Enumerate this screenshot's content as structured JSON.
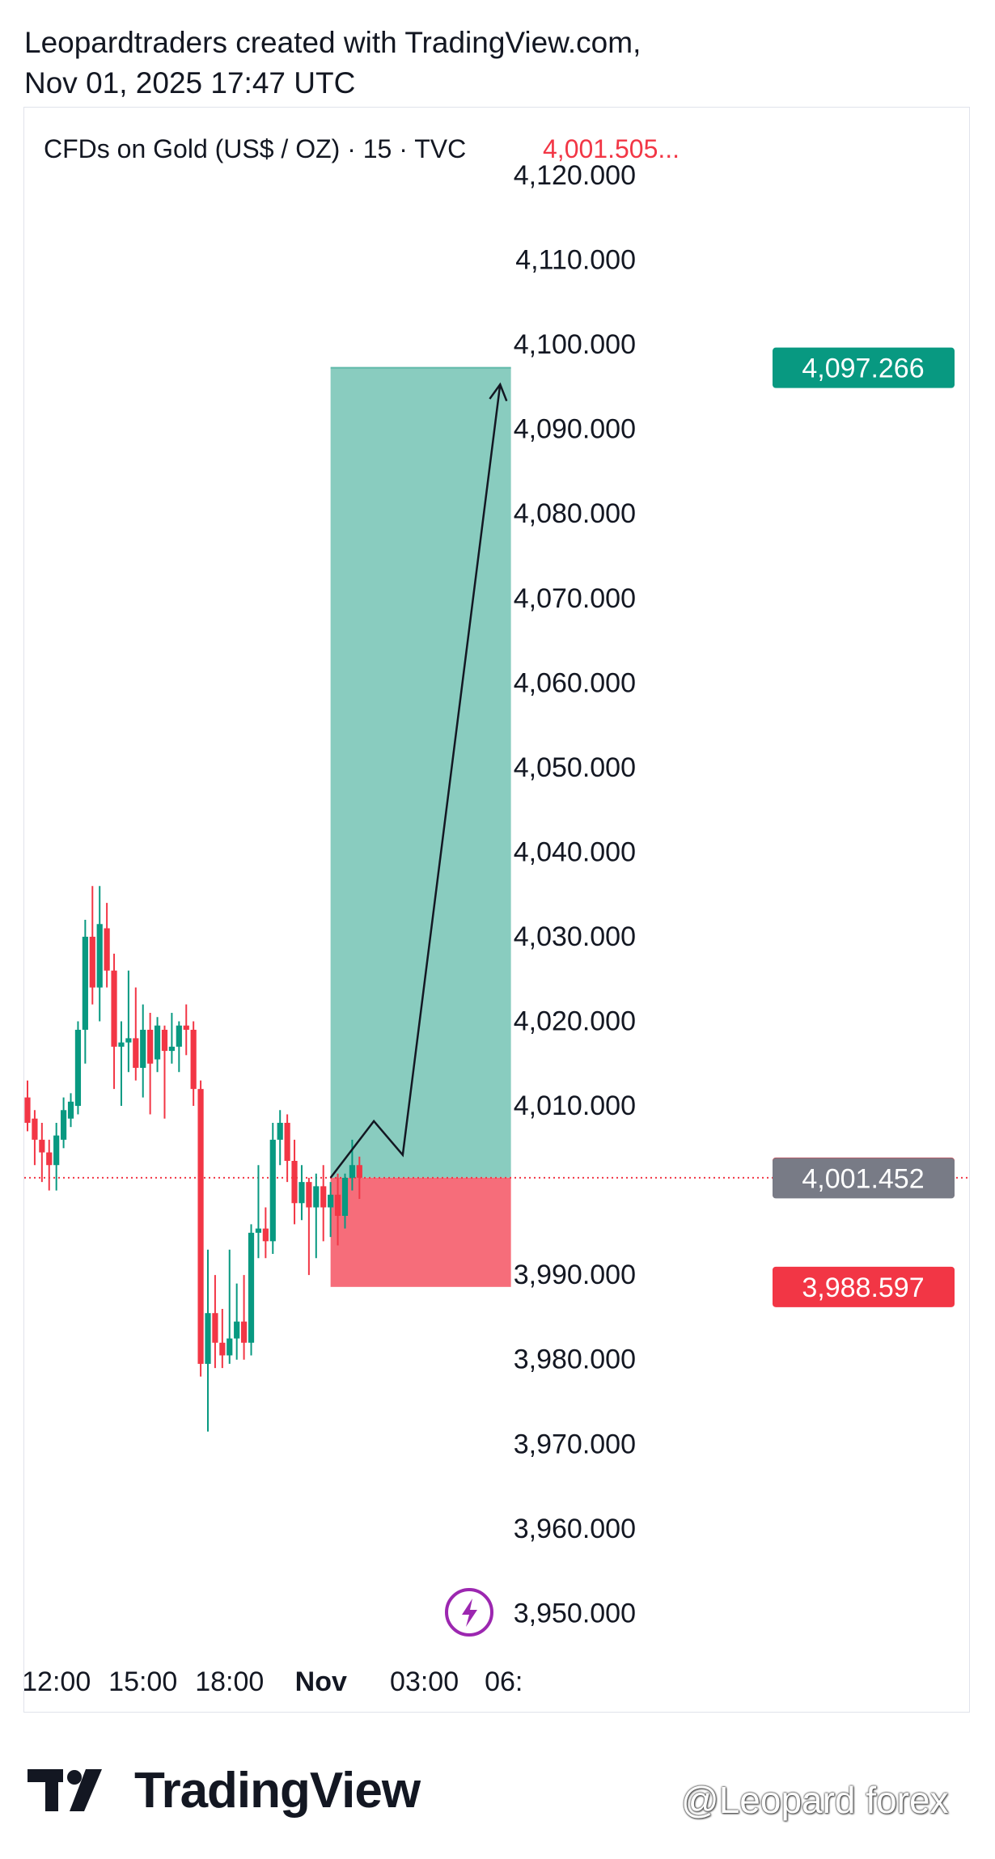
{
  "header": {
    "line1": "Leopardtraders created with TradingView.com,",
    "line2": "Nov 01, 2025 17:47 UTC"
  },
  "chart_data": {
    "type": "candlestick",
    "title": "CFDs on Gold (US$ / OZ) · 15 · TVC",
    "title_price": "4,001.505...",
    "y_range": [
      3942,
      4124
    ],
    "y_ticks": [
      {
        "value": 4120,
        "label": "4,120.000"
      },
      {
        "value": 4110,
        "label": "4,110.000"
      },
      {
        "value": 4100,
        "label": "4,100.000"
      },
      {
        "value": 4090,
        "label": "4,090.000"
      },
      {
        "value": 4080,
        "label": "4,080.000"
      },
      {
        "value": 4070,
        "label": "4,070.000"
      },
      {
        "value": 4060,
        "label": "4,060.000"
      },
      {
        "value": 4050,
        "label": "4,050.000"
      },
      {
        "value": 4040,
        "label": "4,040.000"
      },
      {
        "value": 4030,
        "label": "4,030.000"
      },
      {
        "value": 4020,
        "label": "4,020.000"
      },
      {
        "value": 4010,
        "label": "4,010.000"
      },
      {
        "value": 3990,
        "label": "3,990.000"
      },
      {
        "value": 3980,
        "label": "3,980.000"
      },
      {
        "value": 3970,
        "label": "3,970.000"
      },
      {
        "value": 3960,
        "label": "3,960.000"
      },
      {
        "value": 3950,
        "label": "3,950.000"
      }
    ],
    "x_ticks": [
      {
        "label": "12:00",
        "index": 4,
        "bold": false
      },
      {
        "label": "15:00",
        "index": 16,
        "bold": false
      },
      {
        "label": "18:00",
        "index": 28,
        "bold": false
      },
      {
        "label": "Nov",
        "index": 40,
        "bold": true
      },
      {
        "label": "03:00",
        "index": 55,
        "bold": false
      },
      {
        "label": "06:",
        "index": 66,
        "bold": false
      }
    ],
    "price_labels": [
      {
        "value": 4097.266,
        "label": "4,097.266",
        "color": "#089981"
      },
      {
        "value": 4001.505,
        "label": "4,001.505",
        "color": "#f23645"
      },
      {
        "value": 4001.452,
        "label": "4,001.452",
        "color": "#787b86"
      },
      {
        "value": 3988.597,
        "label": "3,988.597",
        "color": "#f23645"
      }
    ],
    "position": {
      "type": "long",
      "entry": 4001.505,
      "target": 4097.266,
      "stop": 3988.597,
      "start_index": 42,
      "end_index": 67
    },
    "projection_path": [
      {
        "index": 42,
        "value": 4001.5
      },
      {
        "index": 48,
        "value": 4008.2
      },
      {
        "index": 52,
        "value": 4004.2
      },
      {
        "index": 65.5,
        "value": 4095.3
      }
    ],
    "candles": [
      {
        "o": 4011.0,
        "h": 4013.0,
        "l": 4007.0,
        "c": 4008.0
      },
      {
        "o": 4008.5,
        "h": 4009.5,
        "l": 4003.0,
        "c": 4006.0
      },
      {
        "o": 4006.0,
        "h": 4008.0,
        "l": 4001.0,
        "c": 4004.5
      },
      {
        "o": 4004.5,
        "h": 4006.0,
        "l": 4000.0,
        "c": 4003.0
      },
      {
        "o": 4003.0,
        "h": 4008.0,
        "l": 4000.0,
        "c": 4006.5
      },
      {
        "o": 4006.0,
        "h": 4011.0,
        "l": 4005.0,
        "c": 4009.5
      },
      {
        "o": 4008.5,
        "h": 4011.5,
        "l": 4007.5,
        "c": 4010.5
      },
      {
        "o": 4010.0,
        "h": 4020.0,
        "l": 4009.0,
        "c": 4019.0
      },
      {
        "o": 4019.0,
        "h": 4032.0,
        "l": 4015.0,
        "c": 4030.0
      },
      {
        "o": 4030.0,
        "h": 4036.0,
        "l": 4022.0,
        "c": 4024.0
      },
      {
        "o": 4024.0,
        "h": 4036.0,
        "l": 4020.0,
        "c": 4031.5
      },
      {
        "o": 4031.0,
        "h": 4034.0,
        "l": 4024.0,
        "c": 4026.0
      },
      {
        "o": 4026.0,
        "h": 4028.0,
        "l": 4012.0,
        "c": 4017.0
      },
      {
        "o": 4017.0,
        "h": 4020.0,
        "l": 4010.0,
        "c": 4017.5
      },
      {
        "o": 4017.5,
        "h": 4026.0,
        "l": 4014.0,
        "c": 4018.0
      },
      {
        "o": 4018.0,
        "h": 4024.0,
        "l": 4013.0,
        "c": 4014.5
      },
      {
        "o": 4014.5,
        "h": 4022.0,
        "l": 4011.0,
        "c": 4019.0
      },
      {
        "o": 4019.0,
        "h": 4021.0,
        "l": 4009.0,
        "c": 4015.0
      },
      {
        "o": 4015.5,
        "h": 4020.5,
        "l": 4014.0,
        "c": 4019.5
      },
      {
        "o": 4019.0,
        "h": 4019.5,
        "l": 4008.5,
        "c": 4016.5
      },
      {
        "o": 4016.5,
        "h": 4021.0,
        "l": 4015.0,
        "c": 4017.0
      },
      {
        "o": 4017.0,
        "h": 4020.0,
        "l": 4014.0,
        "c": 4019.5
      },
      {
        "o": 4019.5,
        "h": 4022.0,
        "l": 4016.0,
        "c": 4019.0
      },
      {
        "o": 4019.0,
        "h": 4020.0,
        "l": 4010.0,
        "c": 4012.0
      },
      {
        "o": 4012.0,
        "h": 4013.0,
        "l": 3978.0,
        "c": 3979.5
      },
      {
        "o": 3979.5,
        "h": 3993.0,
        "l": 3971.5,
        "c": 3985.5
      },
      {
        "o": 3985.5,
        "h": 3990.0,
        "l": 3979.0,
        "c": 3982.0
      },
      {
        "o": 3982.0,
        "h": 3986.0,
        "l": 3979.0,
        "c": 3980.5
      },
      {
        "o": 3980.5,
        "h": 3993.0,
        "l": 3979.5,
        "c": 3982.5
      },
      {
        "o": 3982.5,
        "h": 3989.0,
        "l": 3980.0,
        "c": 3984.5
      },
      {
        "o": 3984.5,
        "h": 3990.0,
        "l": 3980.0,
        "c": 3982.0
      },
      {
        "o": 3982.0,
        "h": 3996.0,
        "l": 3980.5,
        "c": 3995.0
      },
      {
        "o": 3995.0,
        "h": 4003.0,
        "l": 3992.0,
        "c": 3995.5
      },
      {
        "o": 3995.5,
        "h": 3998.0,
        "l": 3992.0,
        "c": 3994.0
      },
      {
        "o": 3994.0,
        "h": 4008.0,
        "l": 3992.5,
        "c": 4006.0
      },
      {
        "o": 4006.0,
        "h": 4009.5,
        "l": 4003.0,
        "c": 4008.0
      },
      {
        "o": 4008.0,
        "h": 4009.0,
        "l": 4001.0,
        "c": 4003.5
      },
      {
        "o": 4003.5,
        "h": 4006.0,
        "l": 3996.0,
        "c": 3998.5
      },
      {
        "o": 3998.5,
        "h": 4003.0,
        "l": 3996.5,
        "c": 4001.0
      },
      {
        "o": 4001.0,
        "h": 4001.5,
        "l": 3990.0,
        "c": 3998.0
      },
      {
        "o": 3998.0,
        "h": 4002.0,
        "l": 3992.0,
        "c": 4000.5
      },
      {
        "o": 4000.5,
        "h": 4003.0,
        "l": 3994.0,
        "c": 3998.0
      },
      {
        "o": 3998.0,
        "h": 4001.0,
        "l": 3994.5,
        "c": 3999.5
      },
      {
        "o": 3999.5,
        "h": 4002.0,
        "l": 3993.5,
        "c": 3997.0
      },
      {
        "o": 3997.0,
        "h": 4002.0,
        "l": 3995.5,
        "c": 4001.5
      },
      {
        "o": 4001.5,
        "h": 4006.0,
        "l": 4000.0,
        "c": 4003.0
      },
      {
        "o": 4003.0,
        "h": 4004.0,
        "l": 3999.0,
        "c": 4001.5
      }
    ]
  },
  "brand": {
    "name": "TradingView",
    "watermark": "@Leopard forex"
  }
}
